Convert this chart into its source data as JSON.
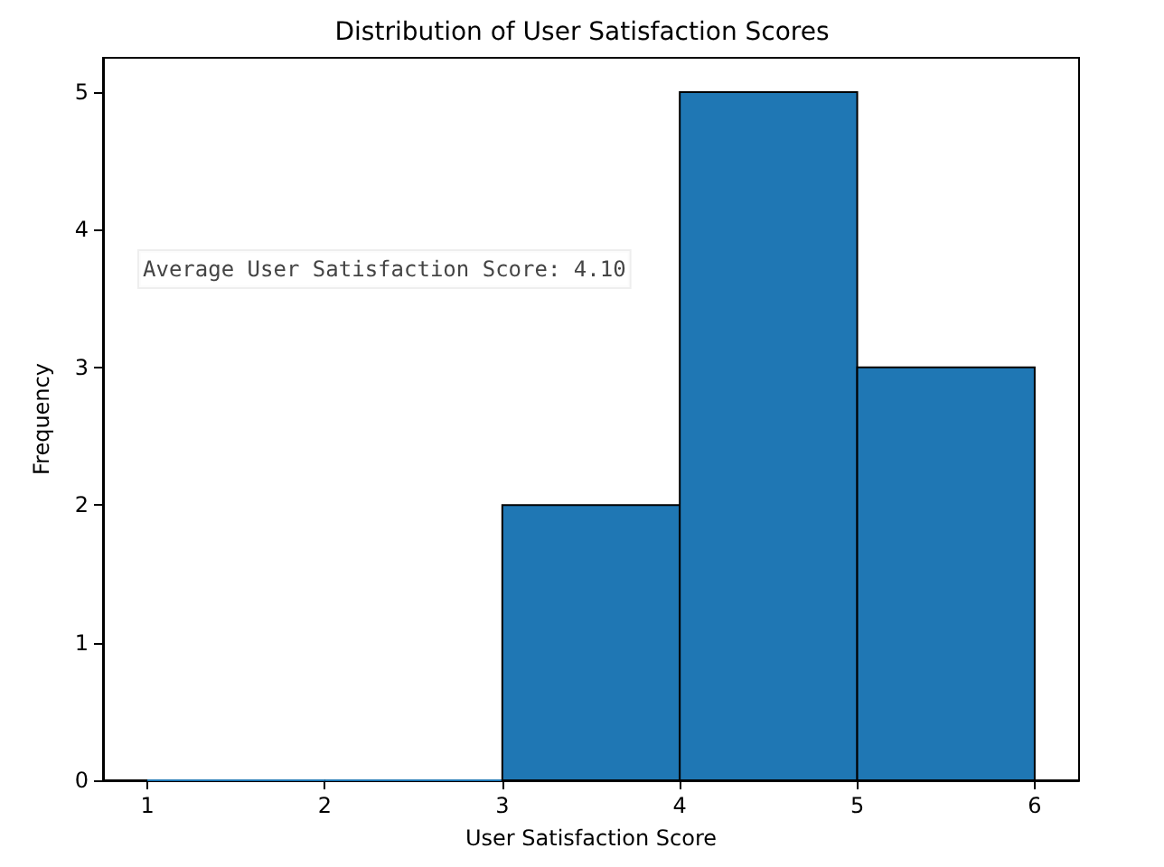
{
  "chart_data": {
    "type": "histogram",
    "title": "Distribution of User Satisfaction Scores",
    "xlabel": "User Satisfaction Score",
    "ylabel": "Frequency",
    "bins": [
      1,
      2,
      3,
      4,
      5,
      6
    ],
    "values": [
      0,
      0,
      2,
      5,
      3
    ],
    "color": "#1f77b4",
    "xlim": [
      0.75,
      6.25
    ],
    "xticks": [
      1,
      2,
      3,
      4,
      5,
      6
    ],
    "ylim": [
      0,
      5.25
    ],
    "yticks": [
      0,
      1,
      2,
      3,
      4,
      5
    ],
    "annotations": [
      "Average User Satisfaction Score: 4.10"
    ],
    "grid": false
  }
}
